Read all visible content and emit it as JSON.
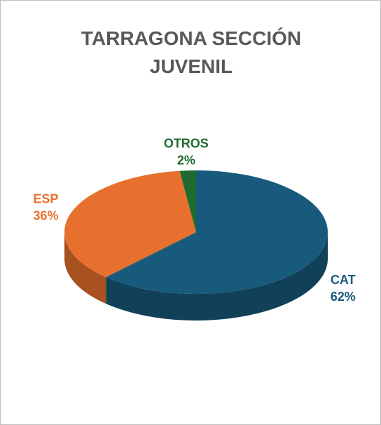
{
  "chart_data": {
    "type": "pie",
    "title": "TARRAGONA SECCIÓN JUVENIL",
    "categories": [
      "CAT",
      "ESP",
      "OTROS"
    ],
    "values": [
      62,
      36,
      2
    ],
    "value_labels": [
      "62%",
      "36%",
      "2%"
    ],
    "colors": [
      "#175a7c",
      "#e8702e",
      "#1f6b2f"
    ]
  }
}
